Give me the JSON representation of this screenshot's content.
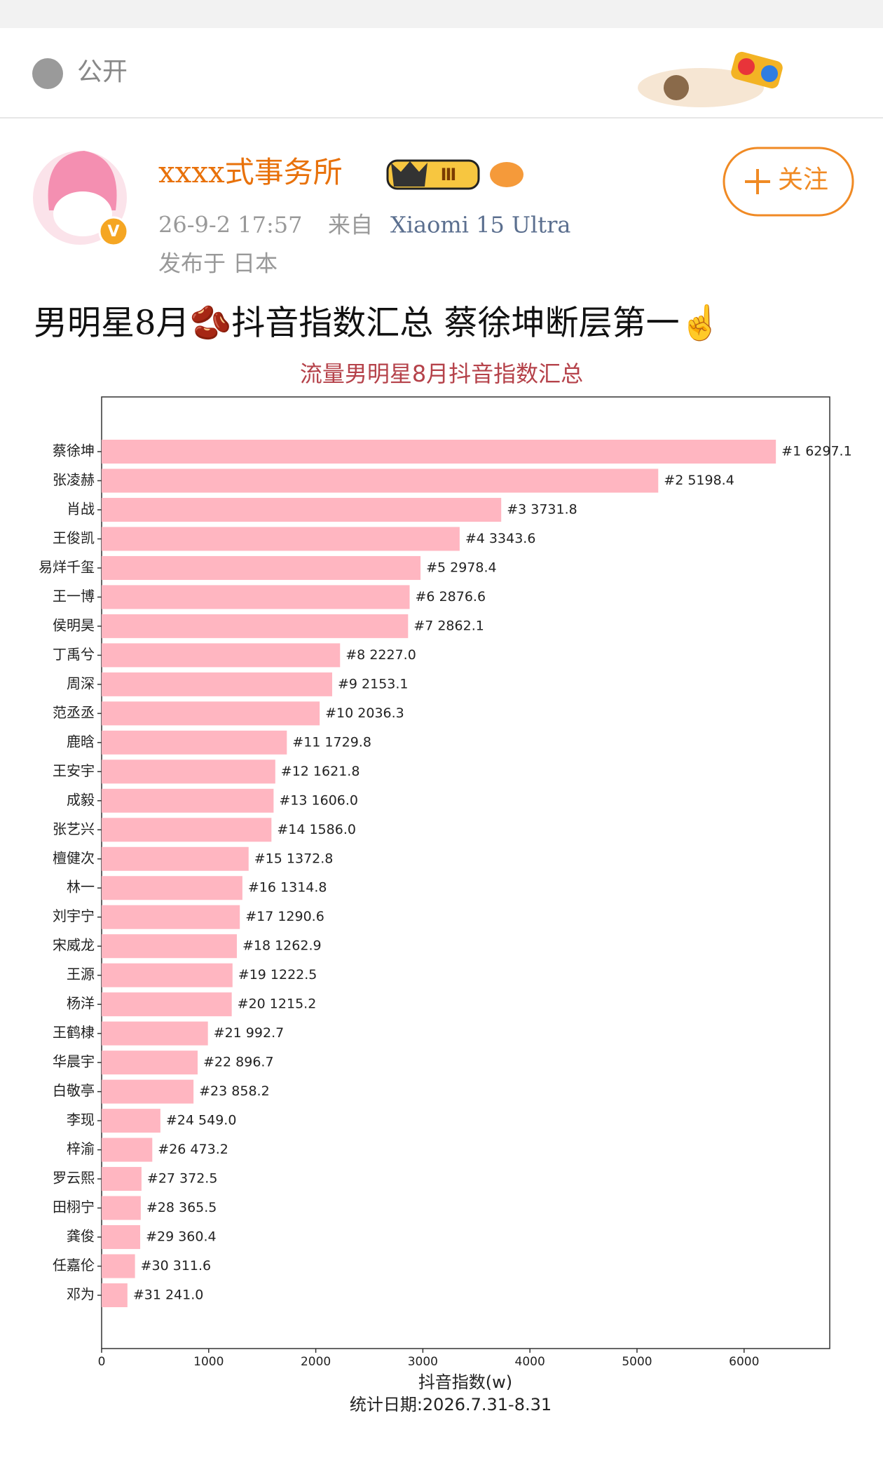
{
  "post": {
    "visibility": "公开",
    "username": "xxxx式事务所",
    "badge_level": "Ⅲ",
    "time": "26-9-2 17:57",
    "source_prefix": "来自",
    "device": "Xiaomi 15 Ultra",
    "location": "发布于 日本",
    "follow": "关注",
    "text": "男明星8月🫘抖音指数汇总 蔡徐坤断层第一☝"
  },
  "chart_data": {
    "type": "bar",
    "orientation": "horizontal",
    "title": "流量男明星8月抖音指数汇总",
    "x_label": "抖音指数(w)",
    "footnote": "统计日期:2026.7.31-8.31",
    "categories": [
      "蔡徐坤",
      "张凌赫",
      "肖战",
      "王俊凯",
      "易烊千玺",
      "王一博",
      "侯明昊",
      "丁禹兮",
      "周深",
      "范丞丞",
      "鹿晗",
      "王安宇",
      "成毅",
      "张艺兴",
      "檀健次",
      "林一",
      "刘宇宁",
      "宋威龙",
      "王源",
      "杨洋",
      "王鹤棣",
      "华晨宇",
      "白敬亭",
      "李现",
      "梓渝",
      "罗云熙",
      "田栩宁",
      "龚俊",
      "任嘉伦",
      "邓为"
    ],
    "values": [
      6297.1,
      5198.4,
      3731.8,
      3343.6,
      2978.4,
      2876.6,
      2862.1,
      2227.0,
      2153.1,
      2036.3,
      1729.8,
      1621.8,
      1606.0,
      1586.0,
      1372.8,
      1314.8,
      1290.6,
      1262.9,
      1222.5,
      1215.2,
      992.7,
      896.7,
      858.2,
      549.0,
      473.2,
      372.5,
      365.5,
      360.4,
      311.6,
      241.0
    ],
    "value_labels": [
      "#1 6297.1",
      "#2 5198.4",
      "#3 3731.8",
      "#4 3343.6",
      "#5 2978.4",
      "#6 2876.6",
      "#7 2862.1",
      "#8 2227.0",
      "#9 2153.1",
      "#10 2036.3",
      "#11 1729.8",
      "#12 1621.8",
      "#13 1606.0",
      "#14 1586.0",
      "#15 1372.8",
      "#16 1314.8",
      "#17 1290.6",
      "#18 1262.9",
      "#19 1222.5",
      "#20 1215.2",
      "#21 992.7",
      "#22 896.7",
      "#23 858.2",
      "#24 549.0",
      "#26 473.2",
      "#27 372.5",
      "#28 365.5",
      "#29 360.4",
      "#30 311.6",
      "#31 241.0"
    ],
    "color": "#ffb6c1",
    "xlim": [
      0,
      6800
    ],
    "xticks": [
      0,
      1000,
      2000,
      3000,
      4000,
      5000,
      6000
    ],
    "grid": false
  }
}
